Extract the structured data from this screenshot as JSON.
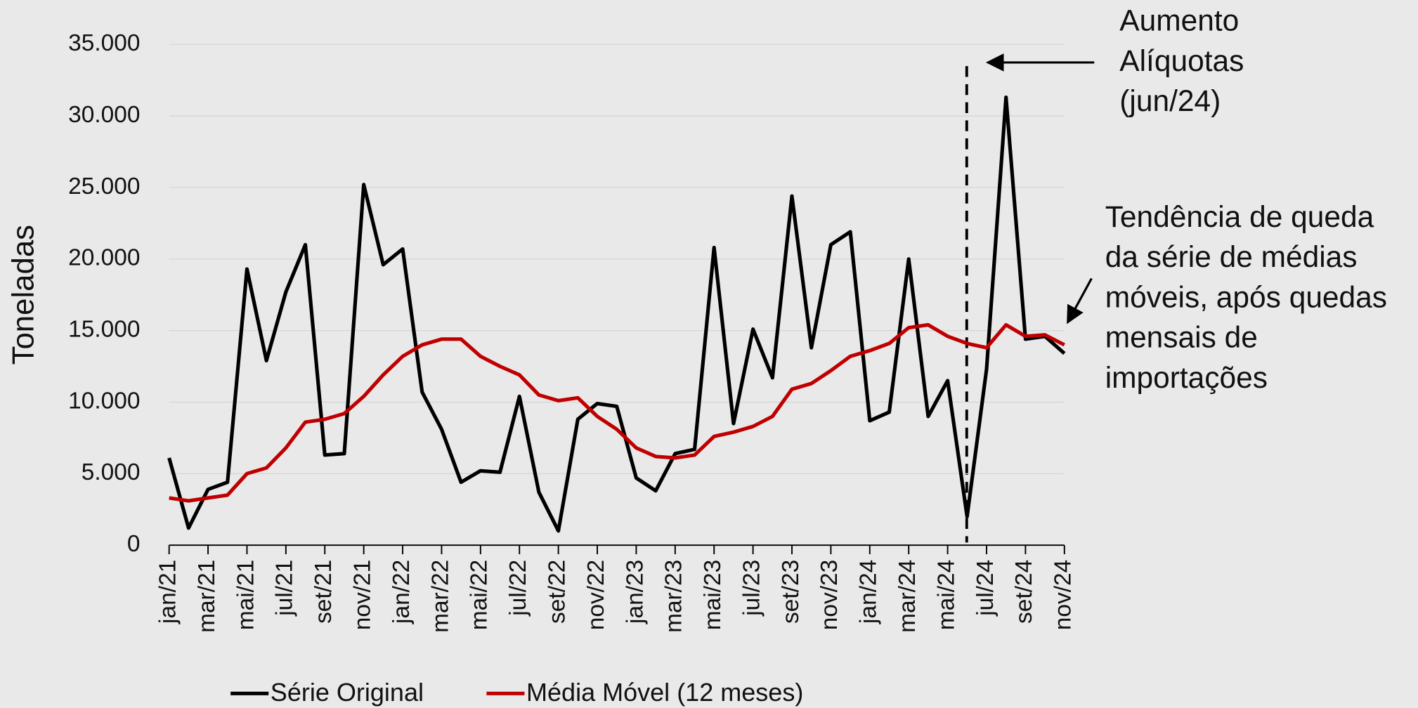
{
  "chart_data": {
    "type": "line",
    "y_label": "Toneladas",
    "categories": [
      "jan/21",
      null,
      "mar/21",
      null,
      "mai/21",
      null,
      "jul/21",
      null,
      "set/21",
      null,
      "nov/21",
      null,
      "jan/22",
      null,
      "mar/22",
      null,
      "mai/22",
      null,
      "jul/22",
      null,
      "set/22",
      null,
      "nov/22",
      null,
      "jan/23",
      null,
      "mar/23",
      null,
      "mai/23",
      null,
      "jul/23",
      null,
      "set/23",
      null,
      "nov/23",
      null,
      "jan/24",
      null,
      "mar/24",
      null,
      "mai/24",
      null,
      "jul/24",
      null,
      "set/24",
      null,
      "nov/24"
    ],
    "series": [
      {
        "name": "Série Original",
        "color": "#000000",
        "values": [
          6100,
          1200,
          3900,
          4400,
          19300,
          12900,
          17700,
          21000,
          6300,
          6400,
          25200,
          19600,
          20700,
          10700,
          8100,
          4400,
          5200,
          5100,
          10400,
          3700,
          1000,
          8800,
          9900,
          9700,
          4700,
          3800,
          6400,
          6700,
          20800,
          8500,
          15100,
          11700,
          24400,
          13800,
          21000,
          21900,
          8700,
          9300,
          20000,
          9000,
          11500,
          2000,
          12300,
          31300,
          14400,
          14600,
          13400
        ]
      },
      {
        "name": "Média Móvel (12 meses)",
        "color": "#c00000",
        "values": [
          3300,
          3100,
          3300,
          3500,
          5000,
          5400,
          6800,
          8600,
          8800,
          9200,
          10400,
          11900,
          13200,
          14000,
          14400,
          14400,
          13200,
          12500,
          11900,
          10500,
          10100,
          10300,
          9000,
          8100,
          6800,
          6200,
          6100,
          6300,
          7600,
          7900,
          8300,
          9000,
          10900,
          11300,
          12200,
          13200,
          13600,
          14100,
          15200,
          15400,
          14600,
          14100,
          13800,
          15400,
          14600,
          14700,
          14000
        ]
      }
    ],
    "ylim": [
      0,
      35000
    ],
    "yticks": [
      0,
      {
        "value": 5000,
        "label": "5.000"
      },
      {
        "value": 10000,
        "label": "10.000"
      },
      {
        "value": 15000,
        "label": "15.000"
      },
      {
        "value": 20000,
        "label": "20.000"
      },
      {
        "value": 25000,
        "label": "25.000"
      },
      {
        "value": 30000,
        "label": "30.000"
      },
      {
        "value": 35000,
        "label": "35.000"
      }
    ],
    "grid": true,
    "annotations": [
      {
        "lines": [
          "Aumento",
          "Alíquotas",
          "(jun/24)"
        ]
      },
      {
        "lines": [
          "Tendência de queda",
          "da série de médias",
          "móveis, após quedas",
          "mensais de",
          "importações"
        ]
      }
    ]
  }
}
